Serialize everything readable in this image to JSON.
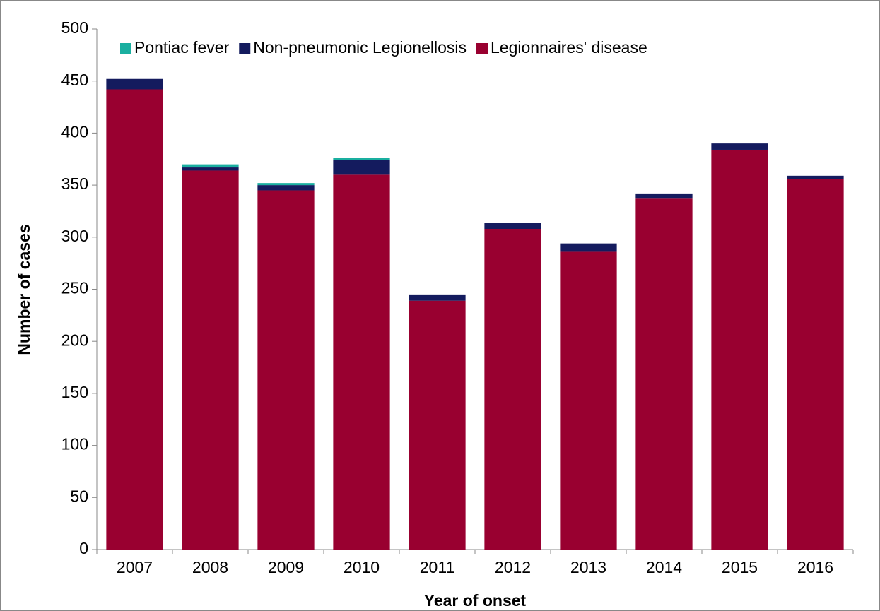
{
  "chart_data": {
    "type": "stacked_bar",
    "x_label": "Year of onset",
    "y_label": "Number of cases",
    "categories": [
      "2007",
      "2008",
      "2009",
      "2010",
      "2011",
      "2012",
      "2013",
      "2014",
      "2015",
      "2016"
    ],
    "series": [
      {
        "name": "Pontiac fever",
        "color": "#1aafa0",
        "values": [
          0,
          3,
          2,
          2,
          0,
          0,
          0,
          0,
          0,
          0
        ]
      },
      {
        "name": "Non-pneumonic Legionellosis",
        "color": "#141b5e",
        "values": [
          10,
          3,
          5,
          14,
          6,
          6,
          8,
          5,
          6,
          3
        ]
      },
      {
        "name": "Legionnaires' disease",
        "color": "#990030",
        "values": [
          442,
          364,
          345,
          360,
          239,
          308,
          286,
          337,
          384,
          356
        ]
      }
    ],
    "ylim": [
      0,
      500
    ],
    "yticks": [
      0,
      50,
      100,
      150,
      200,
      250,
      300,
      350,
      400,
      450,
      500
    ],
    "grid": false
  }
}
